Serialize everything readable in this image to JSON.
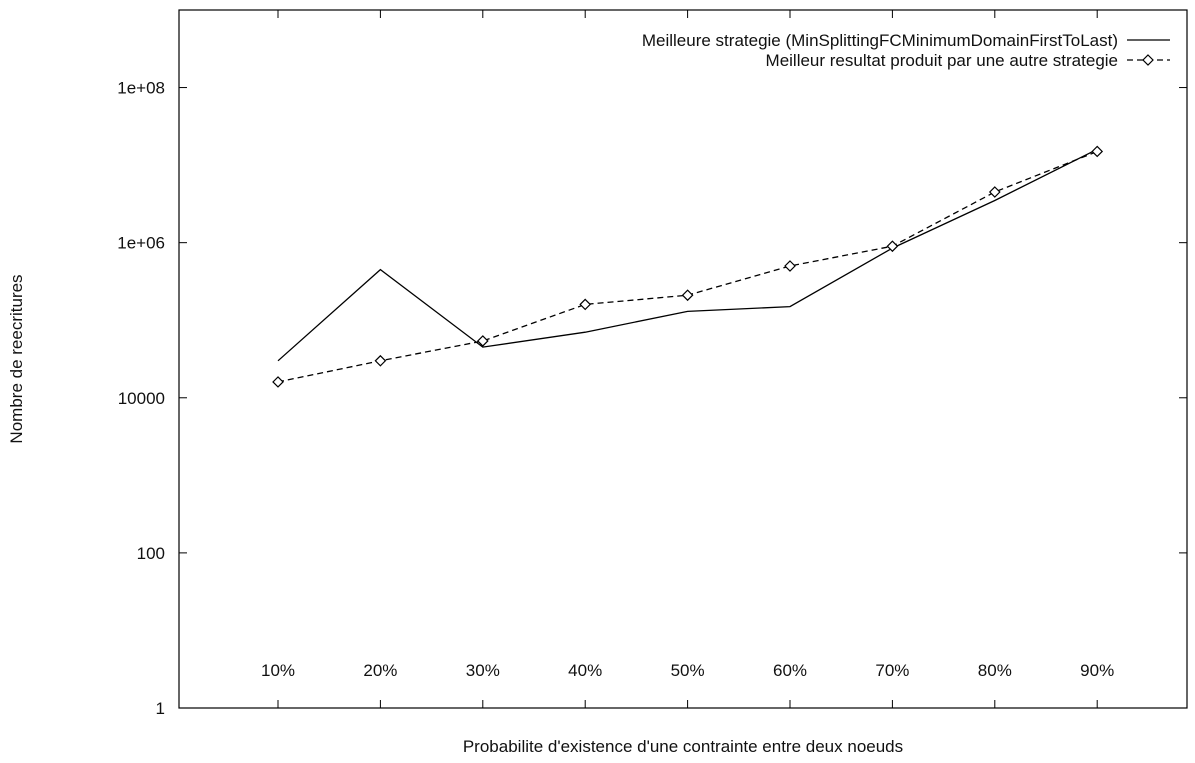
{
  "chart_data": {
    "type": "line",
    "title": "",
    "xlabel": "Probabilite d'existence d'une contrainte entre deux noeuds",
    "ylabel": "Nombre de reecritures",
    "categories": [
      "10%",
      "20%",
      "30%",
      "40%",
      "50%",
      "60%",
      "70%",
      "80%",
      "90%"
    ],
    "y_scale": "log",
    "ylim": [
      1,
      1000000000
    ],
    "yticks": [
      1,
      100,
      10000,
      1000000,
      100000000
    ],
    "ytick_labels": [
      "1",
      "100",
      "10000",
      "1e+06",
      "1e+08"
    ],
    "grid": false,
    "legend_position": "top-right",
    "series": [
      {
        "name": "Meilleure strategie (MinSplittingFCMinimumDomainFirstToLast)",
        "style": "solid",
        "marker": "none",
        "color": "#000000",
        "values": [
          30000,
          450000,
          45000,
          70000,
          130000,
          150000,
          850000,
          3500000,
          16000000
        ]
      },
      {
        "name": "Meilleur resultat produit par une autre strategie",
        "style": "dashed",
        "marker": "diamond",
        "color": "#000000",
        "values": [
          16000,
          30000,
          54000,
          160000,
          210000,
          500000,
          900000,
          4500000,
          15000000
        ]
      }
    ]
  }
}
